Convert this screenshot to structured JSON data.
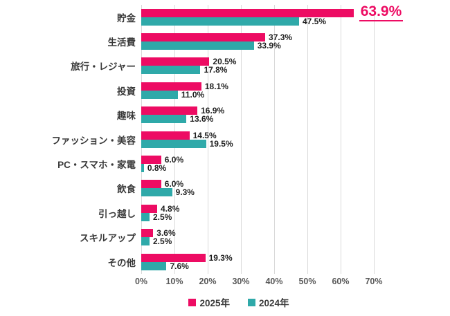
{
  "chart_data": {
    "type": "bar",
    "orientation": "horizontal",
    "categories": [
      "貯金",
      "生活費",
      "旅行・レジャー",
      "投資",
      "趣味",
      "ファッション・美容",
      "PC・スマホ・家電",
      "飲食",
      "引っ越し",
      "スキルアップ",
      "その他"
    ],
    "series": [
      {
        "name": "2025年",
        "color": "#ED0C63",
        "values": [
          63.9,
          37.3,
          20.5,
          18.1,
          16.9,
          14.5,
          6.0,
          6.0,
          4.8,
          3.6,
          19.3
        ],
        "labels": [
          "63.9%",
          "37.3%",
          "20.5%",
          "18.1%",
          "16.9%",
          "14.5%",
          "6.0%",
          "6.0%",
          "4.8%",
          "3.6%",
          "19.3%"
        ]
      },
      {
        "name": "2024年",
        "color": "#2FA9A9",
        "values": [
          47.5,
          33.9,
          17.8,
          11.0,
          13.6,
          19.5,
          0.8,
          9.3,
          2.5,
          2.5,
          7.6
        ],
        "labels": [
          "47.5%",
          "33.9%",
          "17.8%",
          "11.0%",
          "13.6%",
          "19.5%",
          "0.8%",
          "9.3%",
          "2.5%",
          "2.5%",
          "7.6%"
        ]
      }
    ],
    "x_ticks": [
      "0%",
      "10%",
      "20%",
      "30%",
      "40%",
      "50%",
      "60%",
      "70%"
    ],
    "xlim": [
      0,
      70
    ],
    "grid": "vertical",
    "grid_color": "#d9d9d9",
    "legend_position": "bottom",
    "highlight": {
      "series": "2025年",
      "category": "貯金",
      "label": "63.9%",
      "style": "large-pink-underlined",
      "color": "#ED0C63"
    }
  },
  "legend": {
    "items": [
      {
        "label": "2025年",
        "color": "#ED0C63"
      },
      {
        "label": "2024年",
        "color": "#2FA9A9"
      }
    ]
  }
}
